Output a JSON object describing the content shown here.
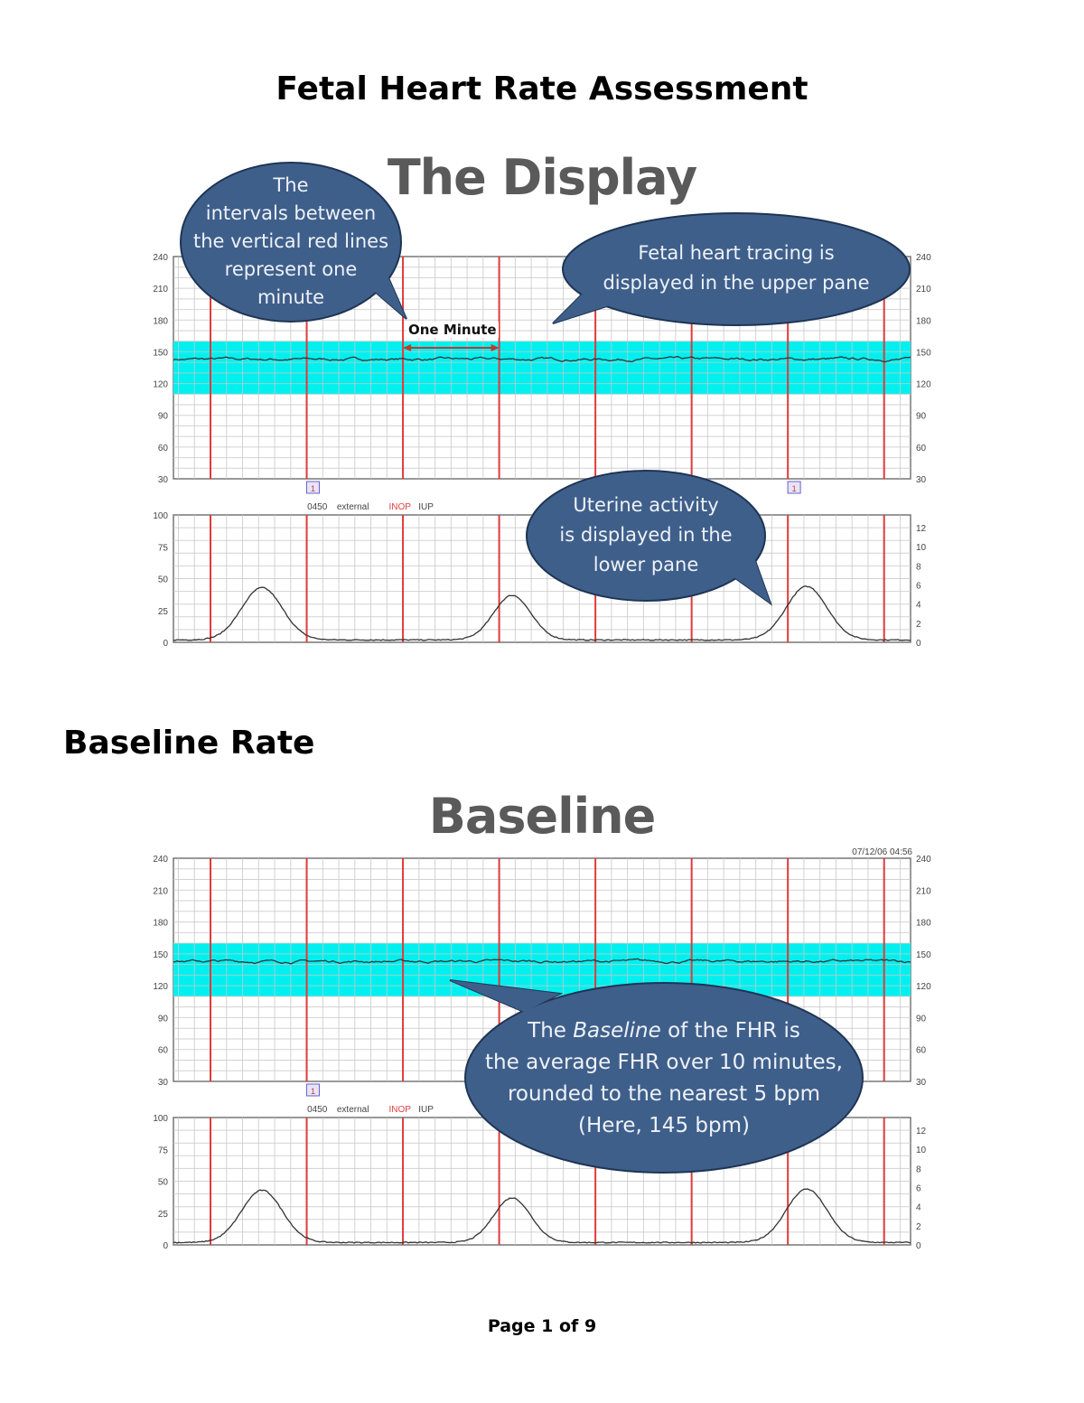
{
  "page_title": "Fetal Heart Rate Assessment",
  "section_heading": "Baseline Rate",
  "footer": {
    "prefix": "Page ",
    "current": "1",
    "middle": " of ",
    "total": "9"
  },
  "colors": {
    "minute_line": "#e03a3a",
    "grid": "#c8c8c8",
    "normal_band": "#00f0f0",
    "bubble_fill": "#3f5f8b",
    "bubble_border": "#1e3554",
    "trace": "#333333"
  },
  "figures": [
    {
      "slide_title": "The Display",
      "timestamp": "",
      "annotation_label": "One Minute",
      "strip_label": {
        "code": "0450",
        "mode": "external",
        "status": "INOP",
        "sensor": "IUP"
      },
      "event_markers_min": [
        1.45,
        6.45
      ],
      "bubbles": [
        {
          "lines": [
            "The",
            "intervals between",
            "the vertical red lines",
            "represent one",
            "minute"
          ]
        },
        {
          "lines": [
            "Fetal heart tracing is",
            "displayed in the upper pane"
          ]
        },
        {
          "lines": [
            "Uterine activity",
            "is displayed in the",
            "lower pane"
          ]
        }
      ]
    },
    {
      "slide_title": "Baseline",
      "timestamp": "07/12/06 04:56",
      "strip_label": {
        "code": "0450",
        "mode": "external",
        "status": "INOP",
        "sensor": "IUP"
      },
      "event_markers_min": [
        1.45
      ],
      "bubbles": [
        {
          "line1_pre": "The ",
          "line1_em": "Baseline",
          "line1_post": " of the FHR is",
          "lines": [
            "the average FHR over 10 minutes,",
            "rounded to the nearest 5 bpm",
            "(Here, 145 bpm)"
          ]
        }
      ]
    }
  ],
  "chart_data": {
    "type": "line",
    "x_unit": "minutes",
    "xlim": [
      0,
      7.66
    ],
    "grid": true,
    "fhr_pane": {
      "ylim": [
        30,
        240
      ],
      "ticks": [
        240,
        210,
        180,
        150,
        120,
        90,
        60,
        30
      ],
      "baseline_bpm": 143,
      "normal_band": [
        110,
        160
      ]
    },
    "ua_pane": {
      "ylim": [
        0,
        100
      ],
      "left_ticks": [
        100,
        75,
        50,
        25,
        0
      ],
      "right_ticks": [
        12,
        10,
        8,
        6,
        4,
        2,
        0
      ],
      "contractions": [
        {
          "center_min": 0.92,
          "peak": 41,
          "width_min": 0.55
        },
        {
          "center_min": 3.52,
          "peak": 35,
          "width_min": 0.5
        },
        {
          "center_min": 6.58,
          "peak": 42,
          "width_min": 0.55
        }
      ]
    }
  }
}
